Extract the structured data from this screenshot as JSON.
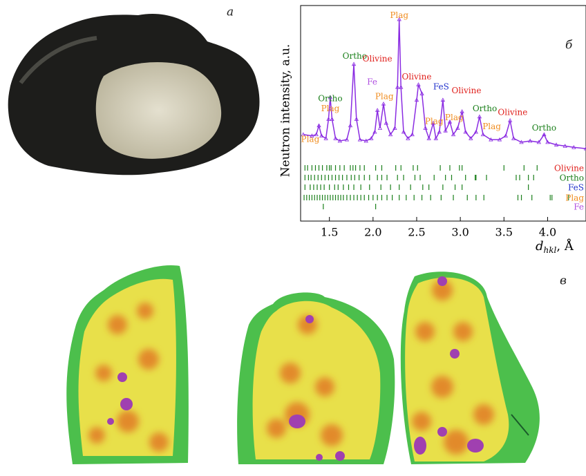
{
  "panels": {
    "a": "а",
    "b": "б",
    "c": "в"
  },
  "chart_data": {
    "type": "line",
    "ylabel": "Neutron intensity, a.u.",
    "xlabel": "dhkl, Å",
    "xlim": [
      1.17,
      4.44
    ],
    "xticks": [
      1.5,
      {
        "value": 2,
        "label": "2.0"
      },
      2.5,
      {
        "value": 3,
        "label": "3.0"
      },
      3.5,
      {
        "value": 4,
        "label": "4.0"
      }
    ],
    "ylim": [
      -70,
      100
    ],
    "color": "#8a2be2",
    "x": [
      1.2,
      1.3,
      1.35,
      1.38,
      1.41,
      1.46,
      1.49,
      1.51,
      1.53,
      1.57,
      1.62,
      1.7,
      1.74,
      1.78,
      1.81,
      1.85,
      1.92,
      1.98,
      2.02,
      2.05,
      2.08,
      2.12,
      2.15,
      2.2,
      2.25,
      2.28,
      2.3,
      2.32,
      2.35,
      2.4,
      2.45,
      2.5,
      2.52,
      2.56,
      2.6,
      2.64,
      2.69,
      2.72,
      2.76,
      2.8,
      2.83,
      2.88,
      2.92,
      2.97,
      3.02,
      3.06,
      3.12,
      3.18,
      3.22,
      3.26,
      3.35,
      3.45,
      3.52,
      3.57,
      3.61,
      3.7,
      3.8,
      3.9,
      3.96,
      4.0,
      4.1,
      4.2,
      4.3,
      4.44
    ],
    "values": [
      3,
      2,
      3,
      10,
      2,
      0,
      15,
      32,
      15,
      0,
      -2,
      -1,
      10,
      58,
      15,
      -1,
      -2,
      0,
      5,
      22,
      8,
      27,
      12,
      3,
      8,
      40,
      93,
      40,
      5,
      0,
      3,
      30,
      42,
      35,
      8,
      0,
      12,
      0,
      5,
      30,
      6,
      13,
      3,
      8,
      21,
      5,
      0,
      5,
      17,
      3,
      -1,
      -1,
      2,
      14,
      0,
      -3,
      -2,
      -3,
      3,
      -3,
      -5,
      -6,
      -7,
      -8
    ],
    "reflections": [
      {
        "name": "Olivine",
        "color": "#e0201c",
        "positions": [
          1.22,
          1.25,
          1.3,
          1.34,
          1.38,
          1.42,
          1.47,
          1.5,
          1.52,
          1.57,
          1.62,
          1.67,
          1.74,
          1.77,
          1.8,
          1.85,
          1.9,
          2.03,
          2.1,
          2.26,
          2.32,
          2.46,
          2.51,
          2.77,
          2.88,
          2.99,
          3.02,
          3.5,
          3.73,
          3.88
        ]
      },
      {
        "name": "Ortho",
        "color": "#1a7f1a",
        "positions": [
          1.22,
          1.26,
          1.29,
          1.33,
          1.37,
          1.41,
          1.45,
          1.49,
          1.53,
          1.57,
          1.61,
          1.65,
          1.7,
          1.75,
          1.79,
          1.84,
          1.9,
          1.96,
          2.05,
          2.1,
          2.16,
          2.28,
          2.35,
          2.48,
          2.54,
          2.7,
          2.83,
          2.9,
          3.06,
          3.17,
          3.18,
          3.3,
          3.64,
          3.68,
          3.78,
          3.84
        ]
      },
      {
        "name": "FeS",
        "color": "#2233cc",
        "positions": [
          1.22,
          1.28,
          1.32,
          1.36,
          1.4,
          1.44,
          1.5,
          1.56,
          1.6,
          1.66,
          1.72,
          1.78,
          1.86,
          1.96,
          2.09,
          2.2,
          2.3,
          2.43,
          2.57,
          2.64,
          2.8,
          2.94,
          3.02,
          3.78
        ]
      },
      {
        "name": "Plag",
        "color": "#f08c1e",
        "positions": [
          1.21,
          1.24,
          1.27,
          1.3,
          1.33,
          1.36,
          1.39,
          1.42,
          1.45,
          1.48,
          1.51,
          1.54,
          1.57,
          1.6,
          1.63,
          1.66,
          1.7,
          1.74,
          1.78,
          1.82,
          1.86,
          1.9,
          1.95,
          2.0,
          2.05,
          2.1,
          2.16,
          2.22,
          2.3,
          2.38,
          2.47,
          2.56,
          2.66,
          2.78,
          2.92,
          3.08,
          3.18,
          3.27,
          3.66,
          3.7,
          3.82,
          4.03,
          4.05,
          4.24
        ]
      },
      {
        "name": "Fe",
        "color": "#b050e0",
        "positions": [
          1.43,
          2.03
        ]
      }
    ],
    "annotations": [
      {
        "text": "Plag",
        "x": 1.28,
        "y": -1,
        "color": "#f08c1e"
      },
      {
        "text": "Ortho",
        "x": 1.51,
        "y": 31,
        "color": "#1a7f1a"
      },
      {
        "text": "Plag",
        "x": 1.51,
        "y": 23,
        "color": "#f08c1e"
      },
      {
        "text": "Ortho",
        "x": 1.79,
        "y": 64,
        "color": "#1a7f1a"
      },
      {
        "text": "Olivine",
        "x": 2.05,
        "y": 62,
        "color": "#e0201c"
      },
      {
        "text": "Fe",
        "x": 1.99,
        "y": 44,
        "color": "#b050e0"
      },
      {
        "text": "Plag",
        "x": 2.13,
        "y": 32.5,
        "color": "#f08c1e"
      },
      {
        "text": "Plag",
        "x": 2.3,
        "y": 96,
        "color": "#f08c1e"
      },
      {
        "text": "Olivine",
        "x": 2.5,
        "y": 48,
        "color": "#e0201c"
      },
      {
        "text": "FeS",
        "x": 2.78,
        "y": 40,
        "color": "#2233cc"
      },
      {
        "text": "Plag",
        "x": 2.7,
        "y": 13,
        "color": "#f08c1e"
      },
      {
        "text": "Plag",
        "x": 2.93,
        "y": 16,
        "color": "#f08c1e"
      },
      {
        "text": "Olivine",
        "x": 3.07,
        "y": 37,
        "color": "#e0201c"
      },
      {
        "text": "Ortho",
        "x": 3.28,
        "y": 23,
        "color": "#1a7f1a"
      },
      {
        "text": "Plag",
        "x": 3.36,
        "y": 9,
        "color": "#f08c1e"
      },
      {
        "text": "Olivine",
        "x": 3.6,
        "y": 20,
        "color": "#e0201c"
      },
      {
        "text": "Ortho",
        "x": 3.96,
        "y": 8,
        "color": "#1a7f1a"
      }
    ]
  }
}
